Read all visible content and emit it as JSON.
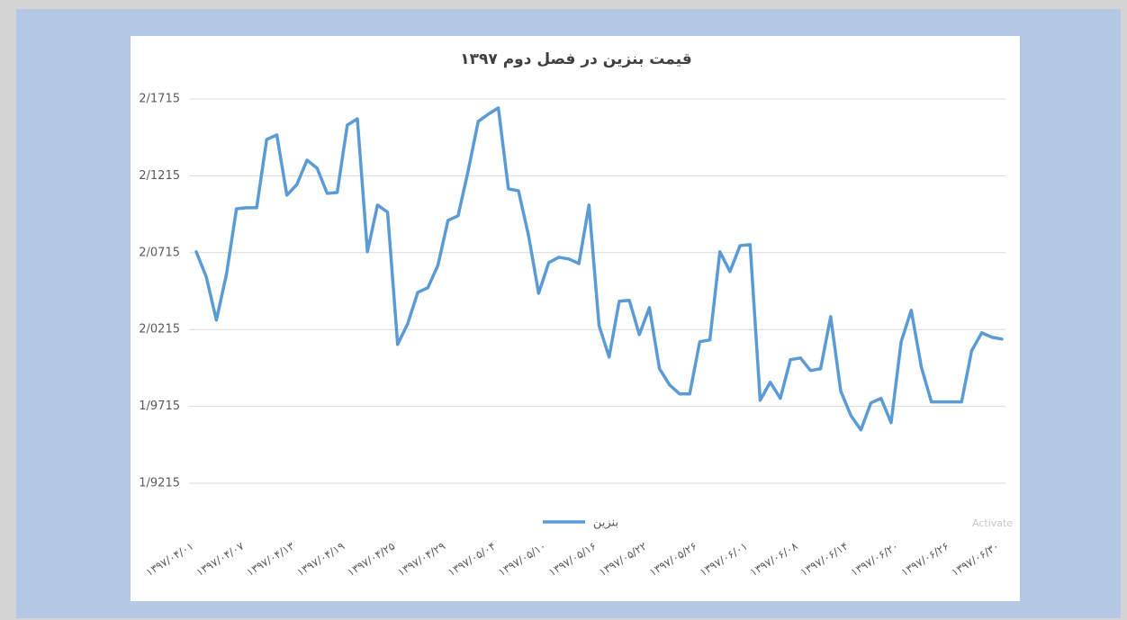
{
  "chart_data": {
    "type": "line",
    "title": "قیمت بنزین در فصل دوم ۱۳۹۷",
    "categories": [
      "۱۳۹۷/۰۴/۰۱",
      null,
      null,
      null,
      null,
      "۱۳۹۷/۰۴/۰۷",
      null,
      null,
      null,
      null,
      "۱۳۹۷/۰۴/۱۳",
      null,
      null,
      null,
      null,
      "۱۳۹۷/۰۴/۱۹",
      null,
      null,
      null,
      null,
      "۱۳۹۷/۰۴/۲۵",
      null,
      null,
      null,
      null,
      "۱۳۹۷/۰۴/۲۹",
      null,
      null,
      null,
      null,
      "۱۳۹۷/۰۵/۰۴",
      null,
      null,
      null,
      null,
      "۱۳۹۷/۰۵/۱۰",
      null,
      null,
      null,
      null,
      "۱۳۹۷/۰۵/۱۶",
      null,
      null,
      null,
      null,
      "۱۳۹۷/۰۵/۲۲",
      null,
      null,
      null,
      null,
      "۱۳۹۷/۰۵/۲۶",
      null,
      null,
      null,
      null,
      "۱۳۹۷/۰۶/۰۱",
      null,
      null,
      null,
      null,
      "۱۳۹۷/۰۶/۰۸",
      null,
      null,
      null,
      null,
      "۱۳۹۷/۰۶/۱۴",
      null,
      null,
      null,
      null,
      "۱۳۹۷/۰۶/۲۰",
      null,
      null,
      null,
      null,
      "۱۳۹۷/۰۶/۲۶",
      null,
      null,
      null,
      null,
      "۱۳۹۷/۰۶/۳۰"
    ],
    "series": [
      {
        "name": "بنزین",
        "color": "#5b9bd5",
        "values": [
          2.0721,
          2.0557,
          2.0276,
          2.0574,
          2.1001,
          2.1007,
          2.1007,
          2.1452,
          2.1481,
          2.1089,
          2.1159,
          2.1317,
          2.1265,
          2.1101,
          2.1107,
          2.1545,
          2.1586,
          2.0721,
          2.1025,
          2.0978,
          2.0118,
          2.0253,
          2.0457,
          2.0487,
          2.0633,
          2.0925,
          2.0955,
          2.1247,
          2.1569,
          2.1616,
          2.1657,
          2.113,
          2.1118,
          2.0826,
          2.0451,
          2.065,
          2.0685,
          2.0674,
          2.0644,
          2.1025,
          2.0241,
          2.0036,
          2.0399,
          2.0405,
          2.0182,
          2.0358,
          1.996,
          1.9855,
          1.9796,
          1.9796,
          2.0136,
          2.0147,
          2.0721,
          2.0592,
          2.0761,
          2.0767,
          1.9755,
          1.9872,
          1.9767,
          2.0019,
          2.003,
          1.9948,
          1.996,
          2.0299,
          1.9814,
          1.9656,
          1.9562,
          1.9738,
          1.9767,
          1.9609,
          2.0136,
          2.034,
          1.9972,
          1.9744,
          1.9744,
          1.9744,
          1.9744,
          2.0077,
          2.0194,
          2.0165,
          2.0153
        ]
      }
    ],
    "ylim": [
      1.9215,
      2.1715
    ],
    "yticks": [
      {
        "value": 1.9215,
        "label": "1/9215"
      },
      {
        "value": 1.9715,
        "label": "1/9715"
      },
      {
        "value": 2.0215,
        "label": "2/0215"
      },
      {
        "value": 2.0715,
        "label": "2/0715"
      },
      {
        "value": 2.1215,
        "label": "2/1215"
      },
      {
        "value": 2.1715,
        "label": "2/1715"
      }
    ],
    "grid": true,
    "legend": "bottom",
    "watermark": "Activate"
  }
}
